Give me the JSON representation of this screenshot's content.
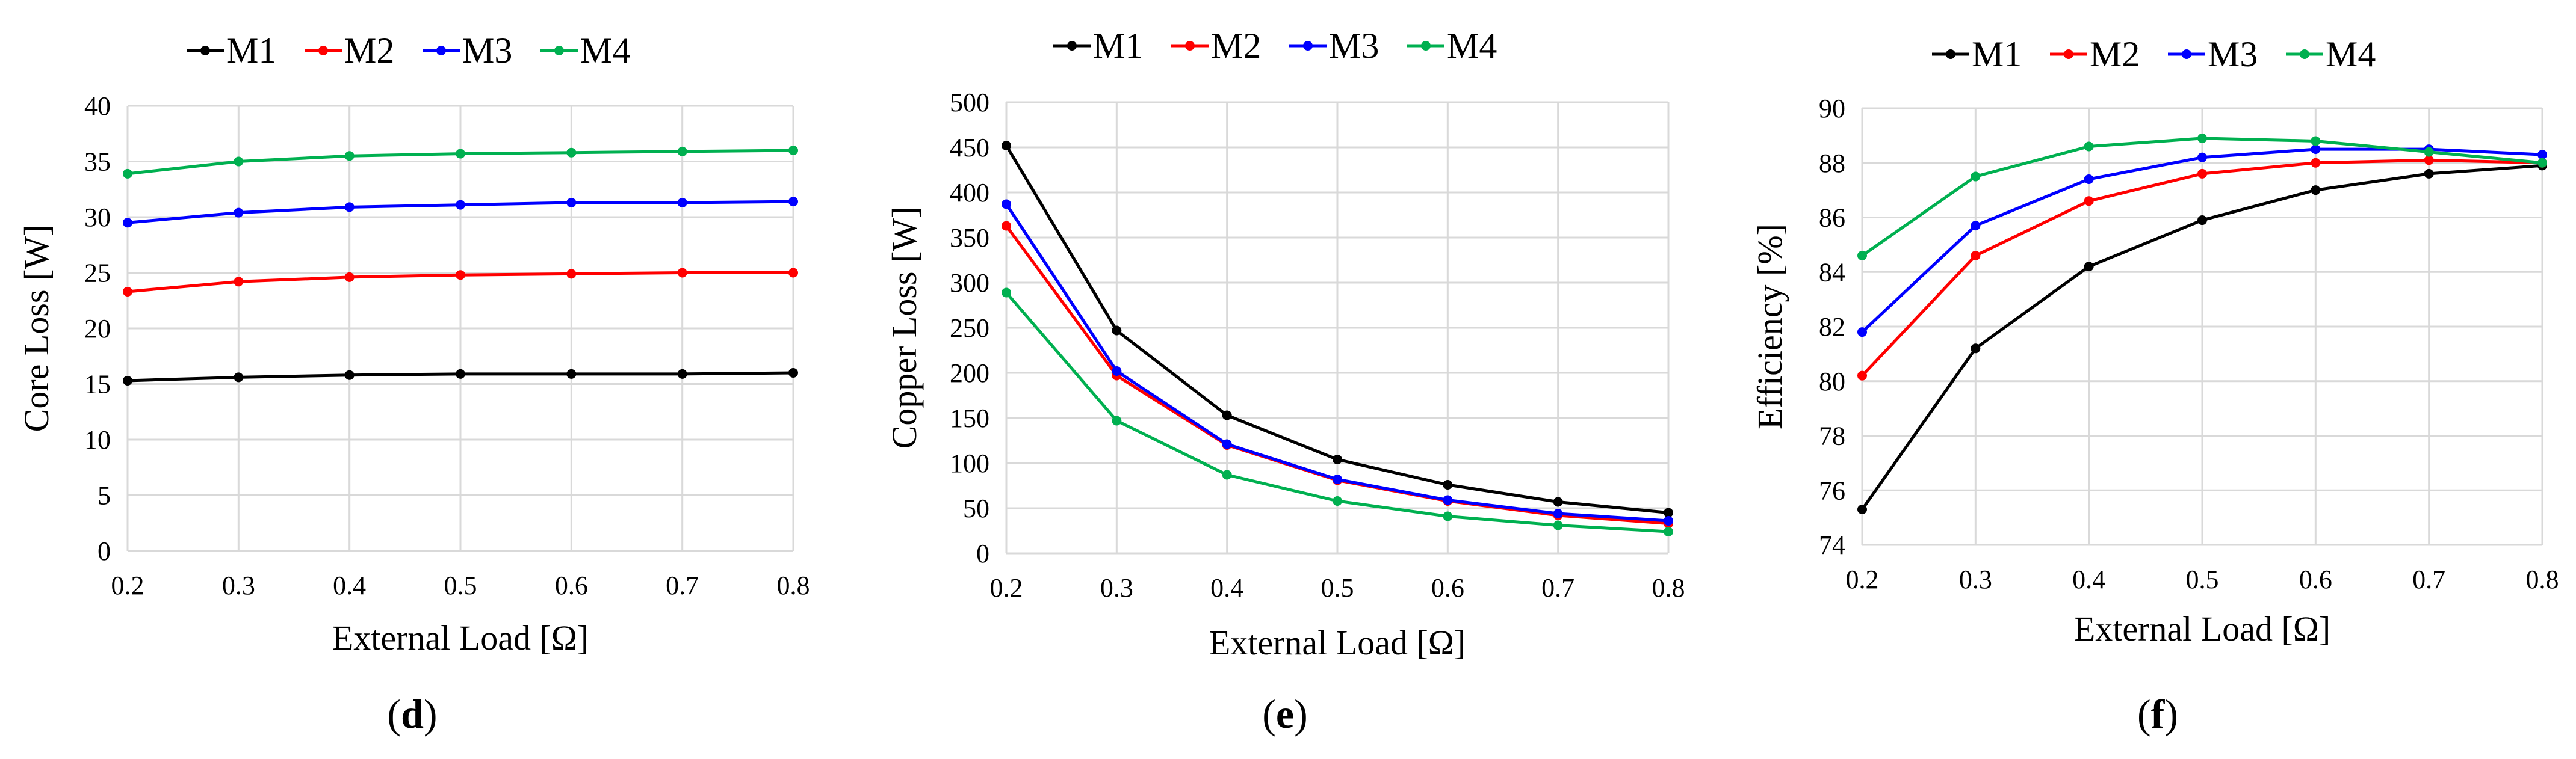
{
  "chart_data": [
    {
      "type": "line",
      "panel_label": "d",
      "title": "",
      "xlabel": "External Load [Ω]",
      "ylabel": "Core Loss [W]",
      "x": [
        0.2,
        0.3,
        0.4,
        0.5,
        0.6,
        0.7,
        0.8
      ],
      "x_tick_labels": [
        "0.2",
        "0.3",
        "0.4",
        "0.5",
        "0.6",
        "0.7",
        "0.8"
      ],
      "xlim": [
        0.2,
        0.8
      ],
      "ylim": [
        0,
        40
      ],
      "y_ticks": [
        0,
        5,
        10,
        15,
        20,
        25,
        30,
        35,
        40
      ],
      "grid": true,
      "legend": "top",
      "series": [
        {
          "name": "M1",
          "color": "#000000",
          "values": [
            15.3,
            15.6,
            15.8,
            15.9,
            15.9,
            15.9,
            16.0
          ]
        },
        {
          "name": "M2",
          "color": "#ff0000",
          "values": [
            23.3,
            24.2,
            24.6,
            24.8,
            24.9,
            25.0,
            25.0
          ]
        },
        {
          "name": "M3",
          "color": "#0000ff",
          "values": [
            29.5,
            30.4,
            30.9,
            31.1,
            31.3,
            31.3,
            31.4
          ]
        },
        {
          "name": "M4",
          "color": "#00b050",
          "values": [
            33.9,
            35.0,
            35.5,
            35.7,
            35.8,
            35.9,
            36.0
          ]
        }
      ]
    },
    {
      "type": "line",
      "panel_label": "e",
      "title": "",
      "xlabel": "External Load [Ω]",
      "ylabel": "Copper Loss [W]",
      "x": [
        0.2,
        0.3,
        0.4,
        0.5,
        0.6,
        0.7,
        0.8
      ],
      "x_tick_labels": [
        "0.2",
        "0.3",
        "0.4",
        "0.5",
        "0.6",
        "0.7",
        "0.8"
      ],
      "xlim": [
        0.2,
        0.8
      ],
      "ylim": [
        0,
        500
      ],
      "y_ticks": [
        0,
        50,
        100,
        150,
        200,
        250,
        300,
        350,
        400,
        450,
        500
      ],
      "grid": true,
      "legend": "top",
      "series": [
        {
          "name": "M1",
          "color": "#000000",
          "values": [
            452,
            247,
            153,
            104,
            76,
            57,
            45
          ]
        },
        {
          "name": "M2",
          "color": "#ff0000",
          "values": [
            363,
            197,
            120,
            81,
            58,
            42,
            33
          ]
        },
        {
          "name": "M3",
          "color": "#0000ff",
          "values": [
            387,
            202,
            121,
            82,
            59,
            44,
            36
          ]
        },
        {
          "name": "M4",
          "color": "#00b050",
          "values": [
            289,
            147,
            87,
            58,
            41,
            31,
            24
          ]
        }
      ]
    },
    {
      "type": "line",
      "panel_label": "f",
      "title": "",
      "xlabel": "External Load [Ω]",
      "ylabel": "Efficiency [%]",
      "x": [
        0.2,
        0.3,
        0.4,
        0.5,
        0.6,
        0.7,
        0.8
      ],
      "x_tick_labels": [
        "0.2",
        "0.3",
        "0.4",
        "0.5",
        "0.6",
        "0.7",
        "0.8"
      ],
      "xlim": [
        0.2,
        0.8
      ],
      "ylim": [
        74,
        90
      ],
      "y_ticks": [
        74,
        76,
        78,
        80,
        82,
        84,
        86,
        88,
        90
      ],
      "grid": true,
      "legend": "top",
      "series": [
        {
          "name": "M1",
          "color": "#000000",
          "values": [
            75.3,
            81.2,
            84.2,
            85.9,
            87.0,
            87.6,
            87.9
          ]
        },
        {
          "name": "M2",
          "color": "#ff0000",
          "values": [
            80.2,
            84.6,
            86.6,
            87.6,
            88.0,
            88.1,
            88.0
          ]
        },
        {
          "name": "M3",
          "color": "#0000ff",
          "values": [
            81.8,
            85.7,
            87.4,
            88.2,
            88.5,
            88.5,
            88.3
          ]
        },
        {
          "name": "M4",
          "color": "#00b050",
          "values": [
            84.6,
            87.5,
            88.6,
            88.9,
            88.8,
            88.4,
            88.0
          ]
        }
      ]
    }
  ]
}
